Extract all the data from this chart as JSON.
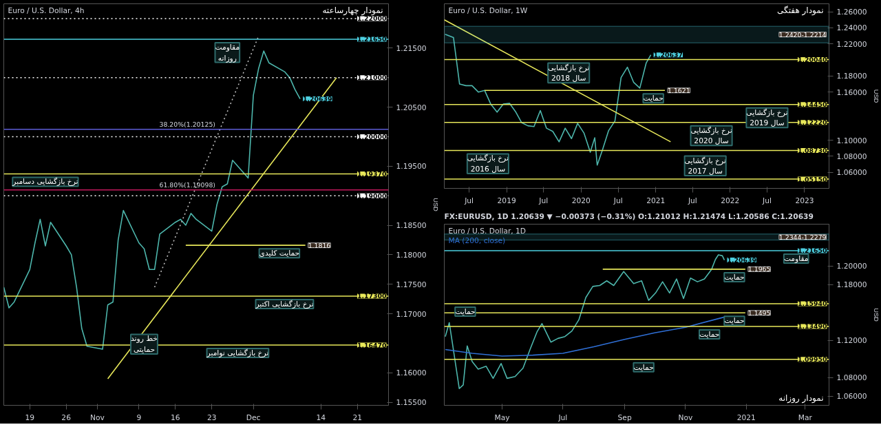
{
  "chart_data": [
    {
      "type": "line",
      "title": "Euro / U.S. Dollar, 4h",
      "subtitle": "نمودار چهارساعته",
      "ylabel": "USD",
      "grid": false,
      "marker": "none",
      "line_style": "solid",
      "xlim": [
        "2020-10-14",
        "2020-12-27"
      ],
      "xticks": [
        {
          "value": "2020-10-19",
          "label": "19"
        },
        {
          "value": "2020-10-26",
          "label": "26"
        },
        {
          "value": "2020-11-01",
          "label": "Nov"
        },
        {
          "value": "2020-11-09",
          "label": "9"
        },
        {
          "value": "2020-11-16",
          "label": "16"
        },
        {
          "value": "2020-11-23",
          "label": "23"
        },
        {
          "value": "2020-12-01",
          "label": "Dec"
        },
        {
          "value": "2020-12-14",
          "label": "14"
        },
        {
          "value": "2020-12-21",
          "label": "21"
        }
      ],
      "ylim": [
        1.1545,
        1.2225
      ],
      "yticks": [
        {
          "value": 1.155,
          "label": "1.15500"
        },
        {
          "value": 1.16,
          "label": "1.16000"
        },
        {
          "value": 1.17,
          "label": "1.17000"
        },
        {
          "value": 1.175,
          "label": "1.17500"
        },
        {
          "value": 1.18,
          "label": "1.18000"
        },
        {
          "value": 1.185,
          "label": "1.18500"
        },
        {
          "value": 1.195,
          "label": "1.19500"
        },
        {
          "value": 1.205,
          "label": "1.20500"
        },
        {
          "value": 1.215,
          "label": "1.21500"
        }
      ],
      "series": [
        {
          "color": "#4db6ac",
          "x": [
            "2020-10-14",
            "2020-10-15",
            "2020-10-16",
            "2020-10-19",
            "2020-10-20",
            "2020-10-21",
            "2020-10-22",
            "2020-10-23",
            "2020-10-26",
            "2020-10-27",
            "2020-10-28",
            "2020-10-29",
            "2020-10-30",
            "2020-11-02",
            "2020-11-03",
            "2020-11-04",
            "2020-11-05",
            "2020-11-06",
            "2020-11-09",
            "2020-11-10",
            "2020-11-11",
            "2020-11-12",
            "2020-11-13",
            "2020-11-16",
            "2020-11-17",
            "2020-11-18",
            "2020-11-19",
            "2020-11-20",
            "2020-11-23",
            "2020-11-24",
            "2020-11-25",
            "2020-11-26",
            "2020-11-27",
            "2020-11-30",
            "2020-12-01",
            "2020-12-02",
            "2020-12-03",
            "2020-12-04",
            "2020-12-07",
            "2020-12-08",
            "2020-12-09",
            "2020-12-10"
          ],
          "values": [
            1.1745,
            1.171,
            1.172,
            1.1775,
            1.182,
            1.186,
            1.1815,
            1.1855,
            1.1815,
            1.18,
            1.1745,
            1.1675,
            1.1645,
            1.164,
            1.1715,
            1.172,
            1.1825,
            1.1875,
            1.182,
            1.181,
            1.1775,
            1.1775,
            1.1835,
            1.1855,
            1.186,
            1.185,
            1.187,
            1.186,
            1.184,
            1.1885,
            1.1915,
            1.192,
            1.196,
            1.193,
            1.207,
            1.2115,
            1.2145,
            1.2125,
            1.211,
            1.21,
            1.208,
            1.2064
          ]
        },
        {
          "type": "line",
          "color": "#e8e85a",
          "x": [
            "2020-11-03",
            "2020-12-17"
          ],
          "values": [
            1.159,
            1.21
          ]
        },
        {
          "type": "line",
          "color": "#bdbdbd",
          "line_style": "dotted",
          "x": [
            "2020-11-12",
            "2020-12-02"
          ],
          "values": [
            1.1745,
            1.217
          ]
        },
        {
          "type": "line",
          "color": "#e8e85a",
          "x": [
            "2020-11-18",
            "2020-12-11"
          ],
          "values": [
            1.1816,
            1.1816
          ]
        }
      ],
      "ref_lines": [
        {
          "axis": "y",
          "value": 1.22,
          "label": "1.22000",
          "color": "#ffffff",
          "line_style": "dotted"
        },
        {
          "axis": "y",
          "value": 1.2165,
          "label": "1.21650",
          "color": "#4dd0e1"
        },
        {
          "axis": "y",
          "value": 1.21,
          "label": "1.21000",
          "color": "#ffffff",
          "line_style": "dotted"
        },
        {
          "axis": "y",
          "value": 1.20125,
          "label": "38.20%(1.20125)",
          "color": "#5c5cd6"
        },
        {
          "axis": "y",
          "value": 1.2,
          "label": "1.20000",
          "color": "#ffffff",
          "line_style": "dotted"
        },
        {
          "axis": "y",
          "value": 1.1937,
          "label": "1.19370",
          "color": "#e8e85a"
        },
        {
          "axis": "y",
          "value": 1.19098,
          "label": "61.80%(1.19098)",
          "color": "#c2185b"
        },
        {
          "axis": "y",
          "value": 1.19,
          "label": "1.19000",
          "color": "#ffffff",
          "line_style": "dotted"
        },
        {
          "axis": "y",
          "value": 1.173,
          "label": "1.17300",
          "color": "#e8e85a"
        },
        {
          "axis": "y",
          "value": 1.1647,
          "label": "1.16470",
          "color": "#e8e85a"
        }
      ],
      "annotations": [
        {
          "text": "1.20639",
          "x": "2020-12-10",
          "y": 1.20639
        },
        {
          "text": "1.1816",
          "x": "2020-12-11",
          "y": 1.1816
        },
        {
          "text": "مقاومت\nروزانه",
          "x": "2020-11-26",
          "y": 1.2165
        },
        {
          "text": "نرخ بازگشایی دسامبر",
          "x": "2020-10-22",
          "y": 1.1937
        },
        {
          "text": "حمایت کلیدی",
          "x": "2020-12-06",
          "y": 1.1816
        },
        {
          "text": "نرخ بازگشایی اکتبر",
          "x": "2020-12-07",
          "y": 1.173
        },
        {
          "text": "خط روند\nحمایتی",
          "x": "2020-11-10",
          "y": 1.1671
        },
        {
          "text": "نرخ بازگشایی نوامبر",
          "x": "2020-11-28",
          "y": 1.1647
        }
      ]
    },
    {
      "type": "line",
      "title": "Euro / U.S. Dollar, 1W",
      "subtitle": "نمودار هفتگی",
      "ylabel": "USD",
      "grid": false,
      "marker": "none",
      "line_style": "solid",
      "xlim": [
        "2018-03-01",
        "2023-05-01"
      ],
      "xticks": [
        {
          "value": "2018-07-01",
          "label": "Jul"
        },
        {
          "value": "2019-01-01",
          "label": "2019"
        },
        {
          "value": "2019-07-01",
          "label": "Jul"
        },
        {
          "value": "2020-01-01",
          "label": "2020"
        },
        {
          "value": "2020-07-01",
          "label": "Jul"
        },
        {
          "value": "2021-01-01",
          "label": "2021"
        },
        {
          "value": "2021-07-01",
          "label": "Jul"
        },
        {
          "value": "2022-01-01",
          "label": "2022"
        },
        {
          "value": "2022-07-01",
          "label": "Jul"
        },
        {
          "value": "2023-01-01",
          "label": "2023"
        }
      ],
      "ylim": [
        1.04,
        1.27
      ],
      "yticks": [
        {
          "value": 1.06,
          "label": "1.06000"
        },
        {
          "value": 1.08,
          "label": "1.08000"
        },
        {
          "value": 1.1,
          "label": "1.10000"
        },
        {
          "value": 1.16,
          "label": "1.16000"
        },
        {
          "value": 1.18,
          "label": "1.18000"
        },
        {
          "value": 1.22,
          "label": "1.22000"
        },
        {
          "value": 1.24,
          "label": "1.24000"
        },
        {
          "value": 1.26,
          "label": "1.26000"
        }
      ],
      "series": [
        {
          "color": "#4db6ac",
          "x": [
            "2018-03-05",
            "2018-04-15",
            "2018-05-15",
            "2018-06-15",
            "2018-07-15",
            "2018-08-15",
            "2018-09-15",
            "2018-10-15",
            "2018-11-15",
            "2018-12-15",
            "2019-01-15",
            "2019-02-15",
            "2019-03-15",
            "2019-04-15",
            "2019-05-15",
            "2019-06-15",
            "2019-07-15",
            "2019-08-15",
            "2019-09-15",
            "2019-10-15",
            "2019-11-15",
            "2019-12-15",
            "2020-01-15",
            "2020-02-15",
            "2020-03-08",
            "2020-03-20",
            "2020-04-15",
            "2020-05-15",
            "2020-06-15",
            "2020-07-15",
            "2020-08-15",
            "2020-09-15",
            "2020-10-15",
            "2020-11-15",
            "2020-12-08"
          ],
          "values": [
            1.232,
            1.228,
            1.17,
            1.168,
            1.168,
            1.16,
            1.162,
            1.145,
            1.135,
            1.145,
            1.146,
            1.135,
            1.122,
            1.118,
            1.117,
            1.137,
            1.115,
            1.111,
            1.098,
            1.115,
            1.102,
            1.121,
            1.109,
            1.085,
            1.103,
            1.069,
            1.088,
            1.112,
            1.124,
            1.178,
            1.191,
            1.172,
            1.165,
            1.196,
            1.2064
          ]
        },
        {
          "type": "line",
          "color": "#e8e85a",
          "x": [
            "2018-03-01",
            "2021-03-15"
          ],
          "values": [
            1.25,
            1.098
          ]
        },
        {
          "type": "line",
          "color": "#e8e85a",
          "x": [
            "2018-09-15",
            "2021-02-15"
          ],
          "values": [
            1.1621,
            1.1621
          ]
        }
      ],
      "bands": [
        {
          "axis": "y",
          "from": 1.2214,
          "to": 1.242,
          "label": "1.2420-1.2214",
          "color": "#4dd0e1"
        }
      ],
      "ref_lines": [
        {
          "axis": "y",
          "value": 1.2004,
          "label": "1.20040",
          "color": "#e8e85a"
        },
        {
          "axis": "y",
          "value": 1.1445,
          "label": "1.14450",
          "color": "#e8e85a"
        },
        {
          "axis": "y",
          "value": 1.1222,
          "label": "1.12220",
          "color": "#e8e85a"
        },
        {
          "axis": "y",
          "value": 1.0873,
          "label": "1.08730",
          "color": "#e8e85a"
        },
        {
          "axis": "y",
          "value": 1.0515,
          "label": "1.05150",
          "color": "#e8e85a"
        }
      ],
      "annotations": [
        {
          "text": "1.20637",
          "x": "2020-12-08",
          "y": 1.20637
        },
        {
          "text": "1.1621",
          "x": "2021-02-15",
          "y": 1.1621
        },
        {
          "text": "نرخ بازگشایی\nسال 2018",
          "x": "2019-11-01",
          "y": 1.2004
        },
        {
          "text": "حمایت",
          "x": "2020-12-20",
          "y": 1.1621
        },
        {
          "text": "نرخ بازگشایی\nسال 2019",
          "x": "2022-07-01",
          "y": 1.1445
        },
        {
          "text": "نرخ بازگشایی\nسال 2016",
          "x": "2018-10-01",
          "y": 1.0873
        },
        {
          "text": "نرخ بازگشایی\nسال 2020",
          "x": "2021-10-01",
          "y": 1.1222
        },
        {
          "text": "نرخ بازگشایی\nسال 2017",
          "x": "2021-09-01",
          "y": 1.0515
        }
      ]
    },
    {
      "type": "line",
      "title": "Euro / U.S. Dollar, 1D",
      "subtitle": "نمودار روزانه",
      "ylabel": "USD",
      "grid": false,
      "legend": "top left",
      "marker": "none",
      "line_style": "solid",
      "xlim": [
        "2020-03-04",
        "2021-03-25"
      ],
      "xticks": [
        {
          "value": "2020-05-01",
          "label": "May"
        },
        {
          "value": "2020-07-01",
          "label": "Jul"
        },
        {
          "value": "2020-09-01",
          "label": "Sep"
        },
        {
          "value": "2020-11-01",
          "label": "Nov"
        },
        {
          "value": "2021-01-01",
          "label": "2021"
        },
        {
          "value": "2021-03-01",
          "label": "Mar"
        }
      ],
      "ylim": [
        1.05,
        1.245
      ],
      "yticks": [
        {
          "value": 1.06,
          "label": "1.06000"
        },
        {
          "value": 1.08,
          "label": "1.08000"
        },
        {
          "value": 1.12,
          "label": "1.12000"
        },
        {
          "value": 1.18,
          "label": "1.18000"
        },
        {
          "value": 1.2,
          "label": "1.20000"
        }
      ],
      "series": [
        {
          "color": "#4db6ac",
          "x": [
            "2020-03-05",
            "2020-03-09",
            "2020-03-12",
            "2020-03-19",
            "2020-03-23",
            "2020-03-27",
            "2020-04-01",
            "2020-04-07",
            "2020-04-15",
            "2020-04-22",
            "2020-04-30",
            "2020-05-06",
            "2020-05-14",
            "2020-05-22",
            "2020-05-29",
            "2020-06-05",
            "2020-06-10",
            "2020-06-19",
            "2020-06-26",
            "2020-07-03",
            "2020-07-10",
            "2020-07-17",
            "2020-07-24",
            "2020-07-31",
            "2020-08-07",
            "2020-08-14",
            "2020-08-21",
            "2020-08-31",
            "2020-09-10",
            "2020-09-18",
            "2020-09-25",
            "2020-10-02",
            "2020-10-09",
            "2020-10-16",
            "2020-10-23",
            "2020-10-30",
            "2020-11-06",
            "2020-11-13",
            "2020-11-20",
            "2020-11-27",
            "2020-12-01",
            "2020-12-04",
            "2020-12-08",
            "2020-12-10"
          ],
          "values": [
            1.124,
            1.139,
            1.118,
            1.068,
            1.072,
            1.114,
            1.097,
            1.089,
            1.092,
            1.079,
            1.095,
            1.079,
            1.081,
            1.09,
            1.11,
            1.129,
            1.138,
            1.118,
            1.122,
            1.124,
            1.13,
            1.142,
            1.166,
            1.178,
            1.179,
            1.184,
            1.179,
            1.194,
            1.181,
            1.184,
            1.163,
            1.171,
            1.183,
            1.171,
            1.186,
            1.165,
            1.187,
            1.183,
            1.186,
            1.196,
            1.207,
            1.212,
            1.211,
            1.2064
          ]
        },
        {
          "name": "MA (200, close)",
          "type": "line",
          "color": "#2f6fd6",
          "x": [
            "2020-03-05",
            "2020-04-01",
            "2020-05-01",
            "2020-06-01",
            "2020-07-01",
            "2020-08-01",
            "2020-09-01",
            "2020-10-01",
            "2020-11-01",
            "2020-12-10"
          ],
          "values": [
            1.11,
            1.106,
            1.103,
            1.104,
            1.106,
            1.113,
            1.121,
            1.128,
            1.134,
            1.145
          ]
        },
        {
          "type": "line",
          "color": "#e8e85a",
          "x": [
            "2020-08-10",
            "2020-12-31"
          ],
          "values": [
            1.1965,
            1.1965
          ]
        },
        {
          "type": "line",
          "color": "#e8e85a",
          "x": [
            "2020-03-04",
            "2020-12-31"
          ],
          "values": [
            1.1495,
            1.1495
          ]
        }
      ],
      "bands": [
        {
          "axis": "y",
          "from": 1.2279,
          "to": 1.2344,
          "label": "1.2344-1.2279",
          "color": "#4dd0e1"
        }
      ],
      "ref_lines": [
        {
          "axis": "y",
          "value": 1.2165,
          "label": "1.21650",
          "color": "#4dd0e1"
        },
        {
          "axis": "y",
          "value": 1.1594,
          "label": "1.15940",
          "color": "#e8e85a"
        },
        {
          "axis": "y",
          "value": 1.1349,
          "label": "1.13490",
          "color": "#e8e85a"
        },
        {
          "axis": "y",
          "value": 1.0995,
          "label": "1.09950",
          "color": "#e8e85a"
        }
      ],
      "annotations": [
        "FX:EURUSD, 1D 1.20639 ▼ −0.00373 (−0.31%) O:1.21012 H:1.21474 L:1.20586 C:1.20639",
        {
          "text": "1.20639",
          "x": "2020-12-10",
          "y": 1.20639
        },
        {
          "text": "1.1965",
          "x": "2020-12-31",
          "y": 1.1965
        },
        {
          "text": "1.1495",
          "x": "2020-12-31",
          "y": 1.1495
        },
        {
          "text": "مقاومت",
          "x": "2021-02-20",
          "y": 1.2165
        },
        {
          "text": "حمایت",
          "x": "2020-12-20",
          "y": 1.1965
        },
        {
          "text": "حمایت",
          "x": "2020-03-25",
          "y": 1.1594
        },
        {
          "text": "حمایت",
          "x": "2020-12-20",
          "y": 1.1495
        },
        {
          "text": "حمایت",
          "x": "2020-11-25",
          "y": 1.1349
        },
        {
          "text": "حمایت",
          "x": "2020-09-20",
          "y": 1.0995
        }
      ]
    }
  ]
}
